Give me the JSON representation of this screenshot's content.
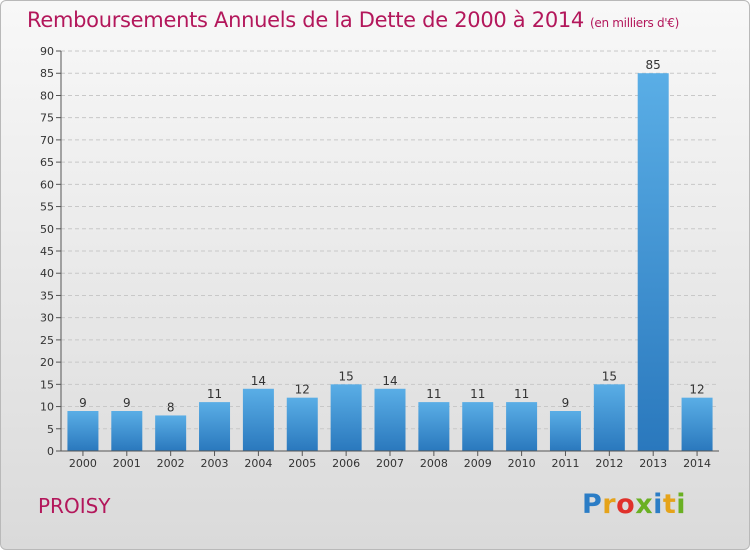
{
  "title": "Remboursements Annuels de la Dette de 2000 à 2014",
  "unit_note": "(en milliers d'€)",
  "commune": "PROISY",
  "logo_text": "Proxiti",
  "colors": {
    "title": "#b3175b",
    "bar_top": "#5aaee6",
    "bar_bottom": "#2a78bd"
  },
  "chart_data": {
    "type": "bar",
    "title": "Remboursements Annuels de la Dette de 2000 à 2014",
    "subtitle": "(en milliers d'€)",
    "categories": [
      "2000",
      "2001",
      "2002",
      "2003",
      "2004",
      "2005",
      "2006",
      "2007",
      "2008",
      "2009",
      "2010",
      "2011",
      "2012",
      "2013",
      "2014"
    ],
    "values": [
      9,
      9,
      8,
      11,
      14,
      12,
      15,
      14,
      11,
      11,
      11,
      9,
      15,
      85,
      12
    ],
    "ylim": [
      0,
      90
    ],
    "yticks": [
      0,
      5,
      10,
      15,
      20,
      25,
      30,
      35,
      40,
      45,
      50,
      55,
      60,
      65,
      70,
      75,
      80,
      85,
      90
    ],
    "grid": true,
    "data_labels": true
  }
}
